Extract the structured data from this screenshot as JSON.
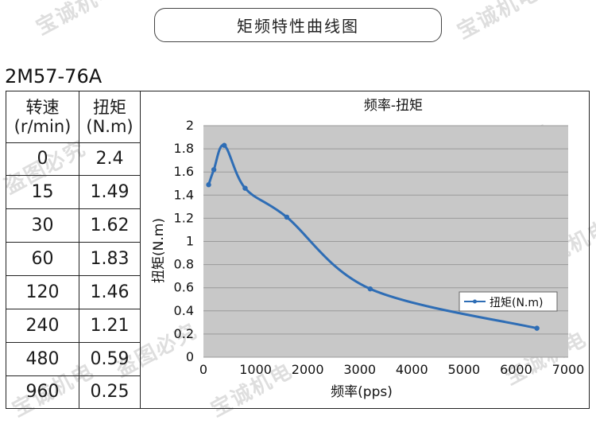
{
  "page_title": "矩频特性曲线图",
  "model": "2M57-76A",
  "watermarks": [
    "宝诚机电",
    "盗图必究"
  ],
  "table": {
    "headers": [
      {
        "line1": "转速",
        "line2": "(r/min)"
      },
      {
        "line1": "扭矩",
        "line2": "(N.m)"
      }
    ],
    "rows": [
      [
        "0",
        "2.4"
      ],
      [
        "15",
        "1.49"
      ],
      [
        "30",
        "1.62"
      ],
      [
        "60",
        "1.83"
      ],
      [
        "120",
        "1.46"
      ],
      [
        "240",
        "1.21"
      ],
      [
        "480",
        "0.59"
      ],
      [
        "960",
        "0.25"
      ]
    ]
  },
  "chart_data": {
    "type": "line",
    "title": "频率-扭矩",
    "xlabel": "频率(pps)",
    "ylabel": "扭矩(N.m)",
    "xlim": [
      0,
      7000
    ],
    "ylim": [
      0,
      2
    ],
    "xticks": [
      "0",
      "1000",
      "2000",
      "3000",
      "4000",
      "5000",
      "6000",
      "7000"
    ],
    "yticks": [
      "0",
      "0.2",
      "0.4",
      "0.6",
      "0.8",
      "1",
      "1.2",
      "1.4",
      "1.6",
      "1.8",
      "2"
    ],
    "grid": true,
    "legend_position": "right",
    "plot_bg": "#c8c8c8",
    "line_color": "#2e6db5",
    "series": [
      {
        "name": "扭矩(N.m)",
        "x": [
          100,
          200,
          400,
          800,
          1600,
          3200,
          6400
        ],
        "y": [
          1.49,
          1.62,
          1.83,
          1.46,
          1.21,
          0.59,
          0.25
        ]
      }
    ]
  }
}
